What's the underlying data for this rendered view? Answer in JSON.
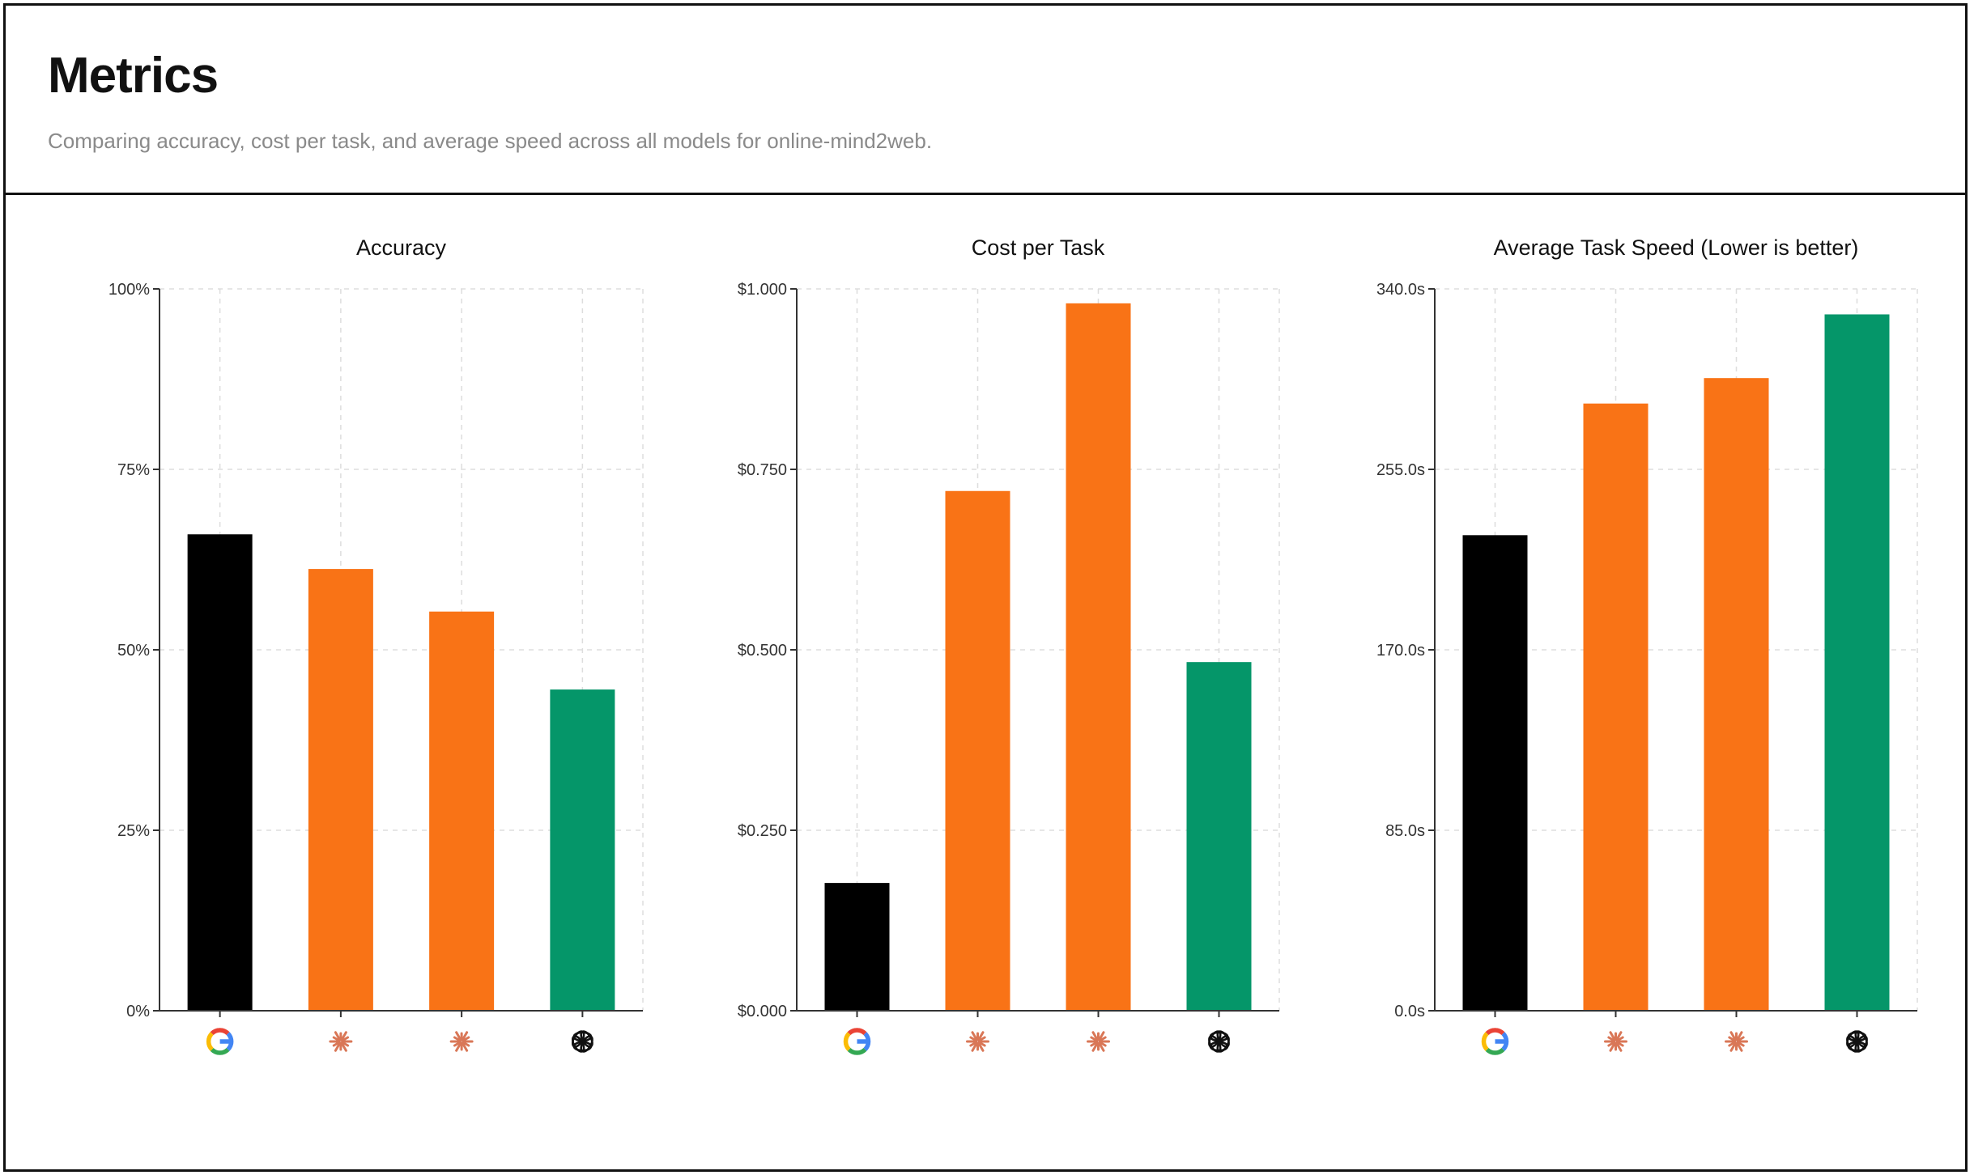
{
  "header": {
    "title": "Metrics",
    "subtitle": "Comparing accuracy, cost per task, and average speed across all models for online-mind2web."
  },
  "colors": {
    "google": "#000000",
    "anthropic": "#f97316",
    "openai": "#059669",
    "grid": "#dddddd",
    "axis": "#333333",
    "tick_text": "#333333"
  },
  "icons": [
    "google-icon",
    "anthropic-icon",
    "anthropic-icon",
    "openai-icon"
  ],
  "chart_data": [
    {
      "type": "bar",
      "title": "Accuracy",
      "categories": [
        "google",
        "anthropic",
        "anthropic",
        "openai"
      ],
      "values": [
        66,
        61.2,
        55.3,
        44.5
      ],
      "ylim": [
        0,
        100
      ],
      "yticks": [
        0,
        25,
        50,
        75,
        100
      ],
      "ytick_labels": [
        "0%",
        "25%",
        "50%",
        "75%",
        "100%"
      ],
      "bar_colors": [
        "#000000",
        "#f97316",
        "#f97316",
        "#059669"
      ],
      "grid": true
    },
    {
      "type": "bar",
      "title": "Cost per Task",
      "categories": [
        "google",
        "anthropic",
        "anthropic",
        "openai"
      ],
      "values": [
        0.177,
        0.72,
        0.98,
        0.483
      ],
      "ylim": [
        0,
        1
      ],
      "yticks": [
        0,
        0.25,
        0.5,
        0.75,
        1
      ],
      "ytick_labels": [
        "$0.000",
        "$0.250",
        "$0.500",
        "$0.750",
        "$1.000"
      ],
      "bar_colors": [
        "#000000",
        "#f97316",
        "#f97316",
        "#059669"
      ],
      "grid": true
    },
    {
      "type": "bar",
      "title": "Average Task Speed (Lower is better)",
      "categories": [
        "google",
        "anthropic",
        "anthropic",
        "openai"
      ],
      "values": [
        224,
        286,
        298,
        328
      ],
      "ylim": [
        0,
        340
      ],
      "yticks": [
        0,
        85,
        170,
        255,
        340
      ],
      "ytick_labels": [
        "0.0s",
        "85.0s",
        "170.0s",
        "255.0s",
        "340.0s"
      ],
      "bar_colors": [
        "#000000",
        "#f97316",
        "#f97316",
        "#059669"
      ],
      "grid": true
    }
  ]
}
